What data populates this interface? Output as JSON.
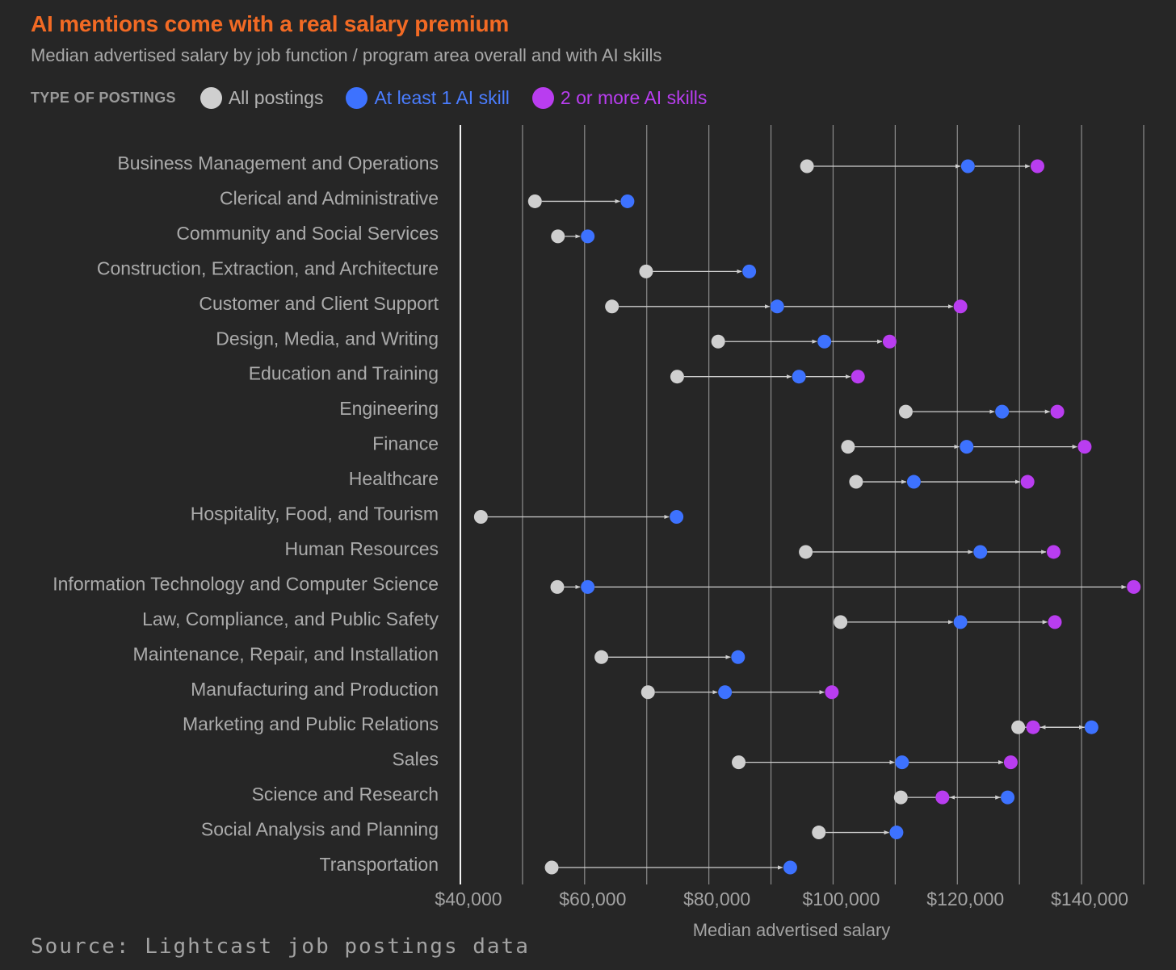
{
  "title": "AI mentions come with a real salary premium",
  "subtitle": "Median advertised salary by job function / program area overall and with AI skills",
  "legend": {
    "label": "TYPE OF POSTINGS",
    "items": [
      {
        "label": "All postings",
        "color": "#cfcfcf",
        "text_color": "#b3b3b3"
      },
      {
        "label": "At least 1 AI skill",
        "color": "#3d72ff",
        "text_color": "#4a7dff"
      },
      {
        "label": "2 or more AI skills",
        "color": "#b93df0",
        "text_color": "#b93df0"
      }
    ]
  },
  "source": "Source: Lightcast job postings data",
  "chart_data": {
    "type": "scatter",
    "title": "AI mentions come with a real salary premium",
    "xlabel": "Median advertised salary",
    "ylabel": "",
    "xlim": [
      40000,
      150000
    ],
    "x_ticks": [
      40000,
      60000,
      80000,
      100000,
      120000,
      140000
    ],
    "x_tick_labels": [
      "$40,000",
      "$60,000",
      "$80,000",
      "$100,000",
      "$120,000",
      "$140,000"
    ],
    "categories": [
      "Business Management and Operations",
      "Clerical and Administrative",
      "Community and Social Services",
      "Construction, Extraction, and Architecture",
      "Customer and Client Support",
      "Design, Media, and Writing",
      "Education and Training",
      "Engineering",
      "Finance",
      "Healthcare",
      "Hospitality, Food, and Tourism",
      "Human Resources",
      "Information Technology and Computer Science",
      "Law, Compliance, and Public Safety",
      "Maintenance, Repair, and Installation",
      "Manufacturing and Production",
      "Marketing and Public Relations",
      "Sales",
      "Science and Research",
      "Social Analysis and Planning",
      "Transportation"
    ],
    "series": [
      {
        "name": "All postings",
        "color": "#cfcfcf",
        "values": [
          95800,
          52000,
          55700,
          69900,
          64400,
          81500,
          74900,
          111700,
          102400,
          103700,
          43300,
          95600,
          55600,
          101200,
          62700,
          70200,
          129800,
          84800,
          110900,
          97700,
          54700
        ]
      },
      {
        "name": "At least 1 AI skill",
        "color": "#3d72ff",
        "values": [
          121700,
          66900,
          60500,
          86500,
          91000,
          98600,
          94500,
          127200,
          121500,
          113000,
          74800,
          123700,
          60500,
          120500,
          84700,
          82600,
          141600,
          111100,
          128100,
          110200,
          93100
        ]
      },
      {
        "name": "2 or more AI skills",
        "color": "#b93df0",
        "values": [
          132900,
          null,
          null,
          null,
          120500,
          109100,
          104000,
          136100,
          140500,
          131300,
          null,
          135500,
          148400,
          135700,
          null,
          99800,
          132200,
          128600,
          117600,
          null,
          null
        ]
      }
    ]
  }
}
